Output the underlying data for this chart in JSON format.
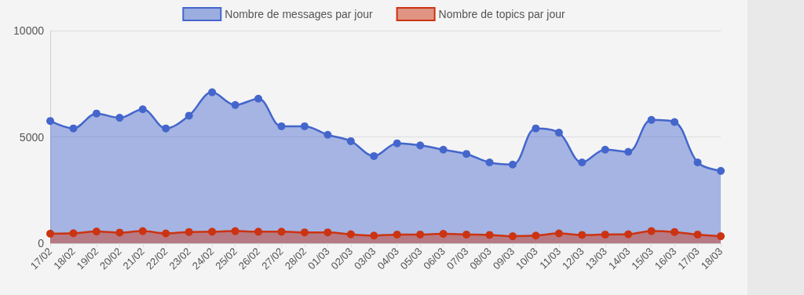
{
  "chart_data": {
    "type": "area",
    "categories": [
      "17/02",
      "18/02",
      "19/02",
      "20/02",
      "21/02",
      "22/02",
      "23/02",
      "24/02",
      "25/02",
      "26/02",
      "27/02",
      "28/02",
      "01/03",
      "02/03",
      "03/03",
      "04/03",
      "05/03",
      "06/03",
      "07/03",
      "08/03",
      "09/03",
      "10/03",
      "11/03",
      "12/03",
      "13/03",
      "14/03",
      "15/03",
      "16/03",
      "17/03",
      "18/03"
    ],
    "series": [
      {
        "name": "Nombre de messages par jour",
        "color": "#4466cc",
        "values": [
          5750,
          5400,
          6100,
          5900,
          6300,
          5400,
          6000,
          7100,
          6500,
          6800,
          5500,
          5500,
          5100,
          4800,
          4100,
          4700,
          4600,
          4400,
          4200,
          3800,
          3700,
          5400,
          5200,
          3800,
          4400,
          4300,
          5800,
          5700,
          3800,
          3400
        ]
      },
      {
        "name": "Nombre de topics par jour",
        "color": "#cc3311",
        "values": [
          450,
          470,
          550,
          500,
          570,
          460,
          530,
          540,
          570,
          540,
          540,
          510,
          510,
          420,
          360,
          410,
          410,
          440,
          410,
          390,
          330,
          360,
          460,
          390,
          410,
          420,
          570,
          530,
          410,
          330
        ]
      }
    ],
    "ylim": [
      0,
      10000
    ],
    "yticks": [
      0,
      5000,
      10000
    ],
    "grid": "y",
    "legend": "top",
    "marker": "circle",
    "line_style": "solid"
  }
}
